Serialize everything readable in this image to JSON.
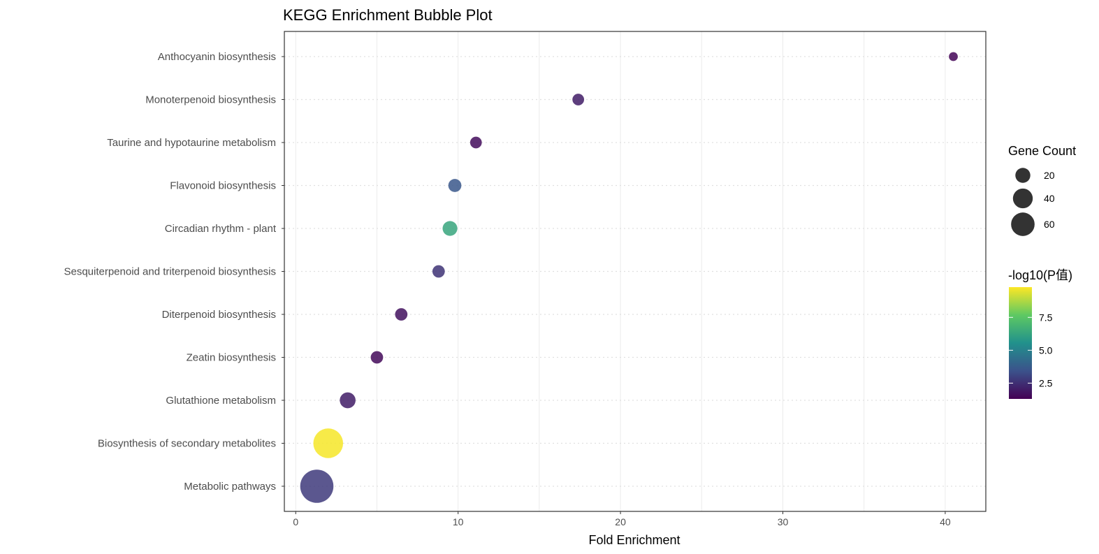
{
  "chart_data": {
    "type": "scatter",
    "title": "KEGG Enrichment Bubble Plot",
    "xlabel": "Fold Enrichment",
    "ylabel": "",
    "xlim": [
      -0.7,
      42.5
    ],
    "x_ticks": [
      0,
      10,
      20,
      30,
      40
    ],
    "grid": true,
    "categories": [
      "Metabolic pathways",
      "Biosynthesis of secondary metabolites",
      "Glutathione metabolism",
      "Zeatin biosynthesis",
      "Diterpenoid biosynthesis",
      "Sesquiterpenoid and triterpenoid biosynthesis",
      "Circadian rhythm - plant",
      "Flavonoid biosynthesis",
      "Taurine and hypotaurine metabolism",
      "Monoterpenoid biosynthesis",
      "Anthocyanin biosynthesis"
    ],
    "points": [
      {
        "category": "Metabolic pathways",
        "fold_enrichment": 1.3,
        "gene_count": 75,
        "neg_log10_p": 2.8
      },
      {
        "category": "Biosynthesis of secondary metabolites",
        "fold_enrichment": 2.0,
        "gene_count": 58,
        "neg_log10_p": 9.7
      },
      {
        "category": "Glutathione metabolism",
        "fold_enrichment": 3.2,
        "gene_count": 12,
        "neg_log10_p": 2.0
      },
      {
        "category": "Zeatin biosynthesis",
        "fold_enrichment": 5.0,
        "gene_count": 6,
        "neg_log10_p": 1.5
      },
      {
        "category": "Diterpenoid biosynthesis",
        "fold_enrichment": 6.5,
        "gene_count": 6,
        "neg_log10_p": 1.7
      },
      {
        "category": "Sesquiterpenoid and triterpenoid biosynthesis",
        "fold_enrichment": 8.8,
        "gene_count": 6,
        "neg_log10_p": 2.6
      },
      {
        "category": "Circadian rhythm - plant",
        "fold_enrichment": 9.5,
        "gene_count": 10,
        "neg_log10_p": 6.3
      },
      {
        "category": "Flavonoid biosynthesis",
        "fold_enrichment": 9.8,
        "gene_count": 7,
        "neg_log10_p": 3.6
      },
      {
        "category": "Taurine and hypotaurine metabolism",
        "fold_enrichment": 11.1,
        "gene_count": 5,
        "neg_log10_p": 1.6
      },
      {
        "category": "Monoterpenoid biosynthesis",
        "fold_enrichment": 17.4,
        "gene_count": 5,
        "neg_log10_p": 2.0
      },
      {
        "category": "Anthocyanin biosynthesis",
        "fold_enrichment": 40.5,
        "gene_count": 2,
        "neg_log10_p": 1.4
      }
    ],
    "size_legend": {
      "title": "Gene Count",
      "values": [
        20,
        40,
        60
      ],
      "labels": [
        "20",
        "40",
        "60"
      ],
      "color": "#333333"
    },
    "color_legend": {
      "title": "-log10(P值)",
      "range": [
        1.3,
        9.8
      ],
      "ticks": [
        2.5,
        5.0,
        7.5
      ],
      "tick_labels": [
        "2.5",
        "5.0",
        "7.5"
      ],
      "colormap": "viridis"
    }
  }
}
